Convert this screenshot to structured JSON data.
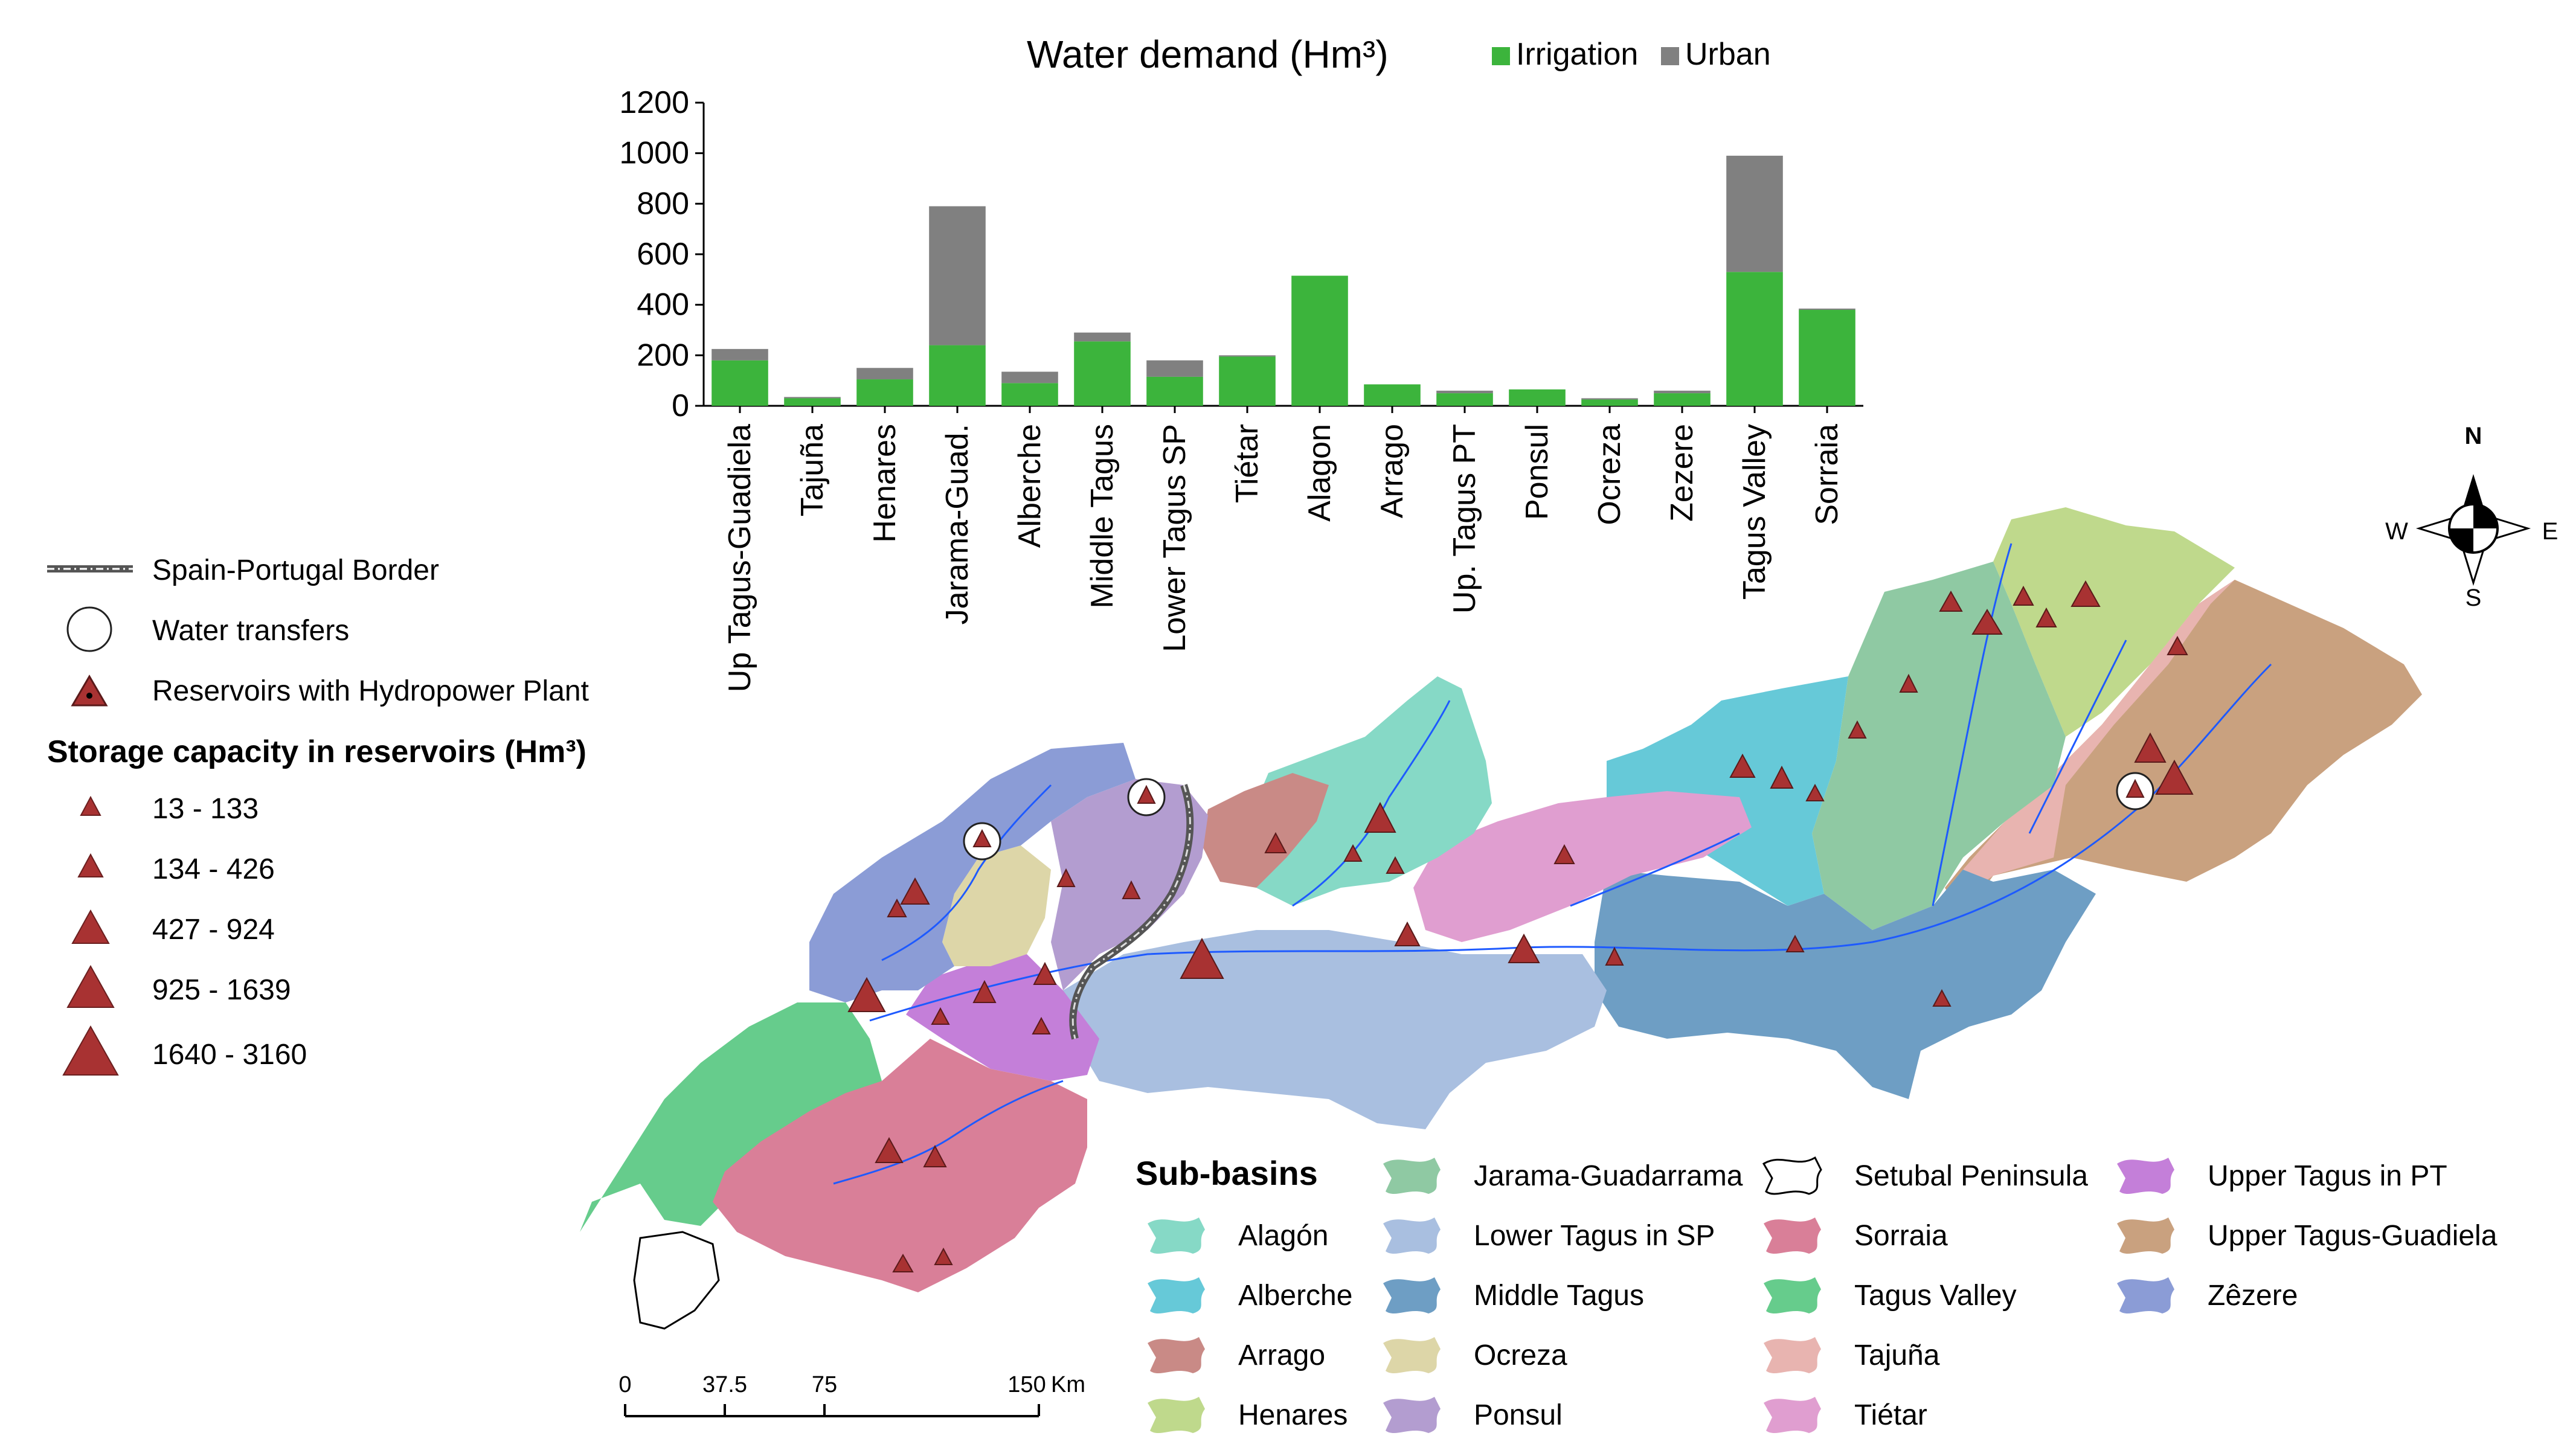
{
  "chart_data": {
    "type": "bar",
    "stacked": true,
    "title": "Water demand (Hm³)",
    "categories": [
      "Up Tagus-Guadiela",
      "Tajuña",
      "Henares",
      "Jarama-Guad.",
      "Alberche",
      "Middle Tagus",
      "Lower Tagus SP",
      "Tiétar",
      "Alagon",
      "Arrago",
      "Up. Tagus PT",
      "Ponsul",
      "Ocreza",
      "Zezere",
      "Tagus Valley",
      "Sorraia"
    ],
    "series": [
      {
        "name": "Irrigation",
        "color": "#3cb43c",
        "values": [
          180,
          30,
          105,
          240,
          90,
          255,
          115,
          195,
          515,
          85,
          50,
          65,
          25,
          50,
          530,
          380
        ]
      },
      {
        "name": "Urban",
        "color": "#808080",
        "values": [
          45,
          5,
          45,
          550,
          45,
          35,
          65,
          5,
          0,
          0,
          10,
          0,
          5,
          10,
          460,
          5
        ]
      }
    ],
    "ylim": [
      0,
      1200
    ],
    "yticks": [
      0,
      200,
      400,
      600,
      800,
      1000,
      1200
    ],
    "grid": false,
    "legend_position": "top-right"
  },
  "legend": {
    "border": "Spain-Portugal Border",
    "transfers": "Water transfers",
    "reservoirs": "Reservoirs with Hydropower Plant",
    "storage_title": "Storage capacity in reservoirs (Hm³)",
    "storage_classes": [
      "13 - 133",
      "134 - 426",
      "427 - 924",
      "925 - 1639",
      "1640 - 3160"
    ]
  },
  "subbasins": {
    "title": "Sub-basins",
    "items": [
      {
        "name": "Alagón",
        "color": "#86d9c6"
      },
      {
        "name": "Alberche",
        "color": "#66c9d8"
      },
      {
        "name": "Arrago",
        "color": "#c98a86"
      },
      {
        "name": "Henares",
        "color": "#bfd98c"
      },
      {
        "name": "Jarama-Guadarrama",
        "color": "#8fc9a3"
      },
      {
        "name": "Lower Tagus in SP",
        "color": "#a9bfe0"
      },
      {
        "name": "Middle Tagus",
        "color": "#6e9ec4"
      },
      {
        "name": "Ocreza",
        "color": "#ddd6a8"
      },
      {
        "name": "Ponsul",
        "color": "#b39dd0"
      },
      {
        "name": "Setubal Peninsula",
        "color": "#ffffff"
      },
      {
        "name": "Sorraia",
        "color": "#d97f98"
      },
      {
        "name": "Tagus Valley",
        "color": "#66cc8c"
      },
      {
        "name": "Tajuña",
        "color": "#e8b4b0"
      },
      {
        "name": "Tiétar",
        "color": "#e09ed0"
      },
      {
        "name": "Upper Tagus in PT",
        "color": "#c47fd9"
      },
      {
        "name": "Upper Tagus-Guadiela",
        "color": "#c9a17f"
      },
      {
        "name": "Zêzere",
        "color": "#8b9cd6"
      }
    ]
  },
  "scalebar": {
    "ticks": [
      "0",
      "37.5",
      "75",
      "150"
    ],
    "unit": "Km"
  },
  "compass": {
    "n": "N",
    "s": "S",
    "e": "E",
    "w": "W"
  },
  "colors": {
    "reservoir": "#a83232",
    "river": "#1e5aff",
    "border": "#555555"
  }
}
